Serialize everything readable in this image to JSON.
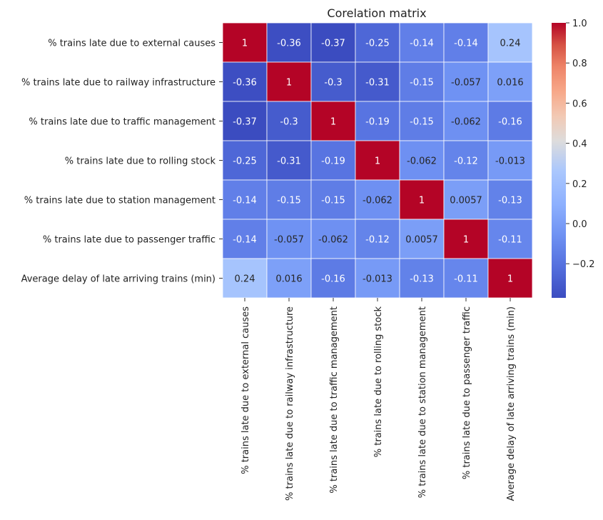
{
  "chart_data": {
    "type": "heatmap",
    "title": "Corelation matrix",
    "xlabel": "",
    "ylabel": "",
    "labels": [
      "% trains late due to external causes",
      "% trains late due to railway infrastructure",
      "% trains late due to traffic management",
      "% trains late due to rolling stock",
      "% trains late due to station management",
      "% trains late due to passenger traffic",
      "Average delay of late arriving trains (min)"
    ],
    "matrix": [
      [
        1,
        -0.36,
        -0.37,
        -0.25,
        -0.14,
        -0.14,
        0.24
      ],
      [
        -0.36,
        1,
        -0.3,
        -0.31,
        -0.15,
        -0.057,
        0.016
      ],
      [
        -0.37,
        -0.3,
        1,
        -0.19,
        -0.15,
        -0.062,
        -0.16
      ],
      [
        -0.25,
        -0.31,
        -0.19,
        1,
        -0.062,
        -0.12,
        -0.013
      ],
      [
        -0.14,
        -0.15,
        -0.15,
        -0.062,
        1,
        0.0057,
        -0.13
      ],
      [
        -0.14,
        -0.057,
        -0.062,
        -0.12,
        0.0057,
        1,
        -0.11
      ],
      [
        0.24,
        0.016,
        -0.16,
        -0.013,
        -0.13,
        -0.11,
        1
      ]
    ],
    "annotations": [
      [
        "1",
        "-0.36",
        "-0.37",
        "-0.25",
        "-0.14",
        "-0.14",
        "0.24"
      ],
      [
        "-0.36",
        "1",
        "-0.3",
        "-0.31",
        "-0.15",
        "-0.057",
        "0.016"
      ],
      [
        "-0.37",
        "-0.3",
        "1",
        "-0.19",
        "-0.15",
        "-0.062",
        "-0.16"
      ],
      [
        "-0.25",
        "-0.31",
        "-0.19",
        "1",
        "-0.062",
        "-0.12",
        "-0.013"
      ],
      [
        "-0.14",
        "-0.15",
        "-0.15",
        "-0.062",
        "1",
        "0.0057",
        "-0.13"
      ],
      [
        "-0.14",
        "-0.057",
        "-0.062",
        "-0.12",
        "0.0057",
        "1",
        "-0.11"
      ],
      [
        "0.24",
        "0.016",
        "-0.16",
        "-0.013",
        "-0.13",
        "-0.11",
        "1"
      ]
    ],
    "colormap": "coolwarm",
    "color_range": [
      -0.37,
      1.0
    ],
    "colorbar_ticks": [
      1.0,
      0.8,
      0.6,
      0.4,
      0.2,
      0.0,
      -0.2
    ],
    "colorbar_tick_labels": [
      "1.0",
      "0.8",
      "0.6",
      "0.4",
      "0.2",
      "0.0",
      "−0.2"
    ],
    "grid": false,
    "legend_position": "right"
  }
}
